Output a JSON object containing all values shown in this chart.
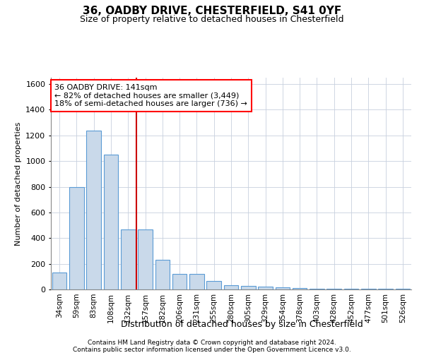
{
  "title1": "36, OADBY DRIVE, CHESTERFIELD, S41 0YF",
  "title2": "Size of property relative to detached houses in Chesterfield",
  "xlabel": "Distribution of detached houses by size in Chesterfield",
  "ylabel": "Number of detached properties",
  "categories": [
    "34sqm",
    "59sqm",
    "83sqm",
    "108sqm",
    "132sqm",
    "157sqm",
    "182sqm",
    "206sqm",
    "231sqm",
    "255sqm",
    "280sqm",
    "305sqm",
    "329sqm",
    "354sqm",
    "378sqm",
    "403sqm",
    "428sqm",
    "452sqm",
    "477sqm",
    "501sqm",
    "526sqm"
  ],
  "values": [
    130,
    800,
    1240,
    1050,
    470,
    470,
    230,
    120,
    120,
    65,
    35,
    25,
    20,
    15,
    10,
    5,
    5,
    5,
    5,
    5,
    5
  ],
  "bar_color": "#c9d9ea",
  "bar_edge_color": "#5b9bd5",
  "bar_width": 0.85,
  "vline_x": 4.5,
  "vline_color": "#cc0000",
  "annotation_text": "36 OADBY DRIVE: 141sqm\n← 82% of detached houses are smaller (3,449)\n18% of semi-detached houses are larger (736) →",
  "ylim": [
    0,
    1650
  ],
  "yticks": [
    0,
    200,
    400,
    600,
    800,
    1000,
    1200,
    1400,
    1600
  ],
  "footer1": "Contains HM Land Registry data © Crown copyright and database right 2024.",
  "footer2": "Contains public sector information licensed under the Open Government Licence v3.0.",
  "bg_color": "#ffffff",
  "grid_color": "#c8d0de"
}
